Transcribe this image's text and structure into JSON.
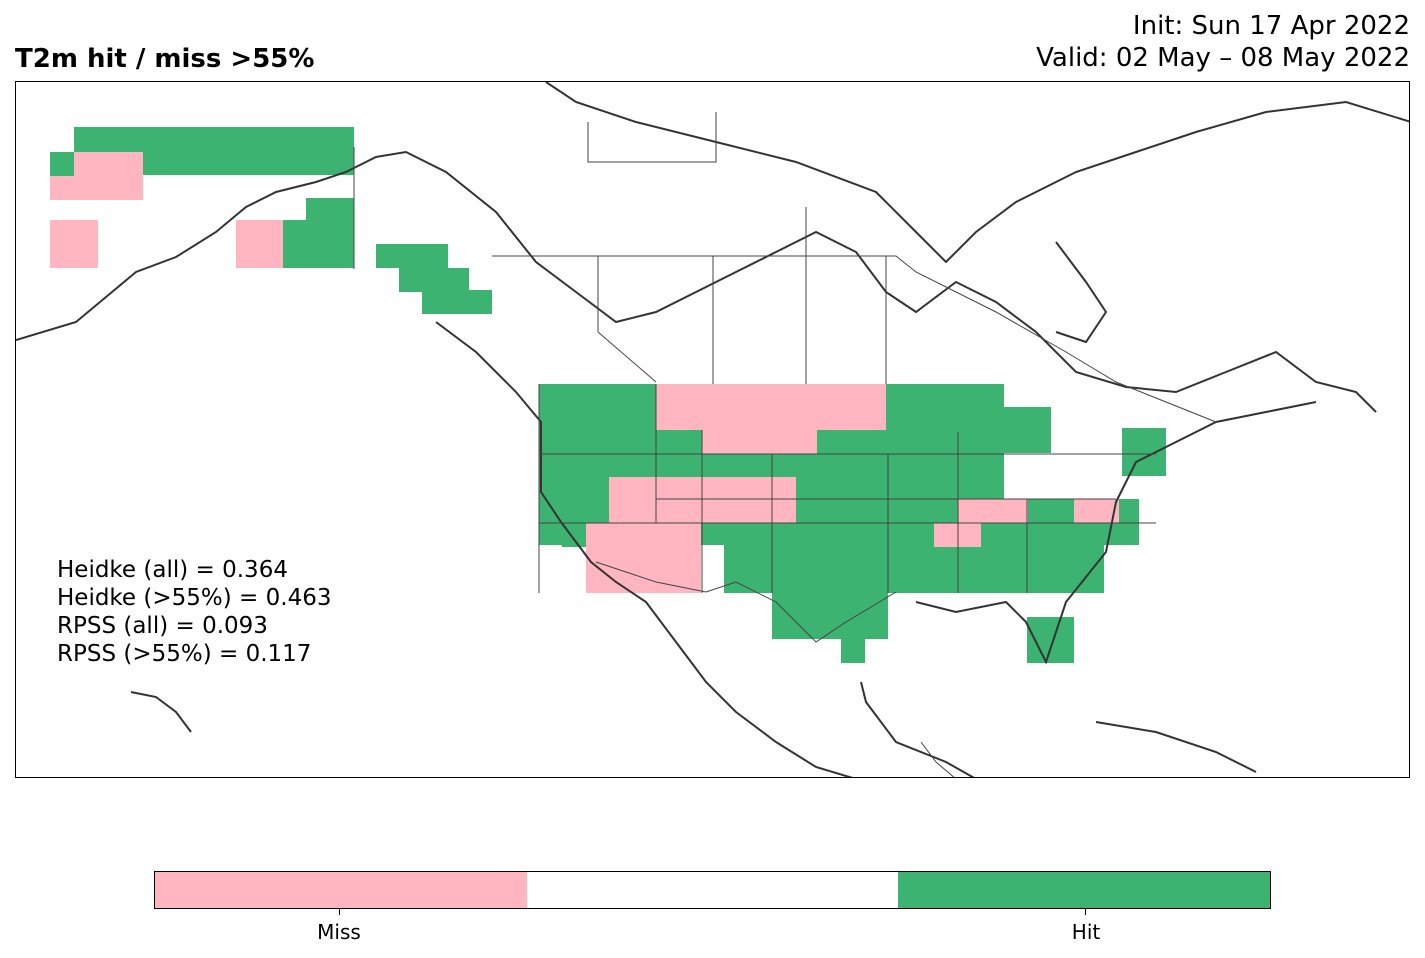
{
  "title": "T2m hit / miss  >55%",
  "init": "Init: Sun 17 Apr 2022",
  "valid": "Valid: 02 May – 08 May 2022",
  "stats": [
    "Heidke (all) = 0.364",
    "Heidke (>55%) = 0.463",
    "RPSS (all) = 0.093",
    "RPSS (>55%) = 0.117"
  ],
  "colorbar": {
    "categories": [
      {
        "label": "Miss",
        "color": "#ffb6c1"
      },
      {
        "label": "",
        "color": "#ffffff"
      },
      {
        "label": "Hit",
        "color": "#3cb371"
      }
    ]
  },
  "colors": {
    "hit": "#3cb371",
    "miss": "#ffb6c1",
    "coast": "#333333"
  }
}
